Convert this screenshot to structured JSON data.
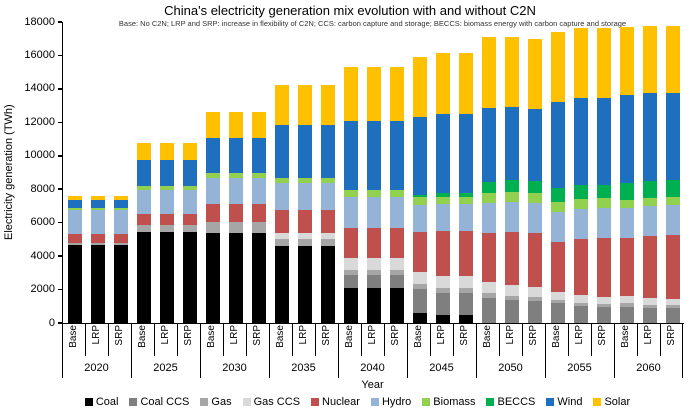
{
  "chart_data": {
    "type": "bar",
    "stacked": true,
    "title": "China's electricity generation mix evolution with and without C2N",
    "subtitle": "Base: No C2N; LRP and SRP: increase in flexibility of C2N; CCS: carbon capture and storage; BECCS: biomass energy with carbon capture and storage",
    "xlabel": "Year",
    "ylabel": "Electricity generation (TWh)",
    "unit": "TWh",
    "ylim": [
      0,
      18000
    ],
    "ytick_step": 2000,
    "grid": false,
    "legend_position": "bottom",
    "scenarios": [
      "Base",
      "LRP",
      "SRP"
    ],
    "series": [
      "Coal",
      "Coal CCS",
      "Gas",
      "Gas CCS",
      "Nuclear",
      "Hydro",
      "Biomass",
      "BECCS",
      "Wind",
      "Solar"
    ],
    "colors": {
      "Coal": "#000000",
      "Coal CCS": "#7F7F7F",
      "Gas": "#A6A6A6",
      "Gas CCS": "#D9D9D9",
      "Nuclear": "#C0504D",
      "Hydro": "#95B3D7",
      "Biomass": "#92D050",
      "BECCS": "#00B050",
      "Wind": "#1E70BE",
      "Solar": "#FFC000"
    },
    "axis_color": "#000000",
    "groups": [
      {
        "year": "2020",
        "values": {
          "Base": [
            4650,
            0,
            150,
            0,
            500,
            1450,
            150,
            0,
            450,
            250
          ],
          "LRP": [
            4650,
            0,
            150,
            0,
            500,
            1450,
            150,
            0,
            450,
            250
          ],
          "SRP": [
            4650,
            0,
            150,
            0,
            500,
            1450,
            150,
            0,
            450,
            250
          ]
        }
      },
      {
        "year": "2025",
        "values": {
          "Base": [
            5450,
            0,
            420,
            0,
            660,
            1440,
            240,
            0,
            1550,
            1030
          ],
          "LRP": [
            5450,
            0,
            420,
            0,
            660,
            1440,
            240,
            0,
            1550,
            1030
          ],
          "SRP": [
            5450,
            0,
            420,
            0,
            660,
            1440,
            240,
            0,
            1550,
            1030
          ]
        }
      },
      {
        "year": "2030",
        "values": {
          "Base": [
            5370,
            0,
            700,
            0,
            1040,
            1590,
            260,
            0,
            2090,
            1590
          ],
          "LRP": [
            5370,
            0,
            700,
            0,
            1040,
            1590,
            260,
            0,
            2090,
            1590
          ],
          "SRP": [
            5370,
            0,
            700,
            0,
            1040,
            1590,
            260,
            0,
            2090,
            1590
          ]
        }
      },
      {
        "year": "2035",
        "values": {
          "Base": [
            4600,
            0,
            450,
            310,
            1400,
            1600,
            300,
            0,
            3190,
            2380
          ],
          "LRP": [
            4600,
            0,
            450,
            310,
            1400,
            1600,
            300,
            0,
            3190,
            2380
          ],
          "SRP": [
            4600,
            0,
            450,
            310,
            1400,
            1600,
            300,
            0,
            3190,
            2380
          ]
        }
      },
      {
        "year": "2040",
        "values": {
          "Base": [
            2110,
            760,
            300,
            700,
            1800,
            1890,
            400,
            0,
            4120,
            3210
          ],
          "LRP": [
            2110,
            760,
            300,
            700,
            1800,
            1890,
            400,
            0,
            4120,
            3210
          ],
          "SRP": [
            2110,
            760,
            300,
            700,
            1800,
            1890,
            400,
            0,
            4120,
            3210
          ]
        }
      },
      {
        "year": "2045",
        "values": {
          "Base": [
            580,
            1430,
            300,
            760,
            2390,
            1600,
            450,
            150,
            4680,
            3590
          ],
          "LRP": [
            500,
            1300,
            300,
            700,
            2700,
            1600,
            450,
            200,
            4750,
            3650
          ],
          "SRP": [
            500,
            1300,
            300,
            700,
            2700,
            1600,
            450,
            200,
            4750,
            3650
          ]
        }
      },
      {
        "year": "2050",
        "values": {
          "Base": [
            0,
            1500,
            275,
            695,
            2890,
            1795,
            600,
            695,
            4390,
            4280
          ],
          "LRP": [
            0,
            1350,
            250,
            650,
            3200,
            1795,
            600,
            700,
            4350,
            4225
          ],
          "SRP": [
            0,
            1300,
            250,
            600,
            3250,
            1795,
            600,
            700,
            4300,
            4165
          ]
        }
      },
      {
        "year": "2055",
        "values": {
          "Base": [
            0,
            1175,
            200,
            500,
            2990,
            1795,
            600,
            800,
            5180,
            4190
          ],
          "LRP": [
            0,
            1000,
            200,
            450,
            3400,
            1795,
            600,
            800,
            5190,
            4195
          ],
          "SRP": [
            0,
            950,
            200,
            430,
            3490,
            1795,
            600,
            800,
            5180,
            4185
          ]
        }
      },
      {
        "year": "2060",
        "values": {
          "Base": [
            0,
            980,
            200,
            440,
            3450,
            1795,
            500,
            1000,
            5280,
            4050
          ],
          "LRP": [
            0,
            880,
            180,
            420,
            3700,
            1795,
            500,
            1000,
            5280,
            4000
          ],
          "SRP": [
            0,
            875,
            180,
            400,
            3785,
            1795,
            500,
            1000,
            5250,
            3970
          ]
        }
      }
    ]
  }
}
